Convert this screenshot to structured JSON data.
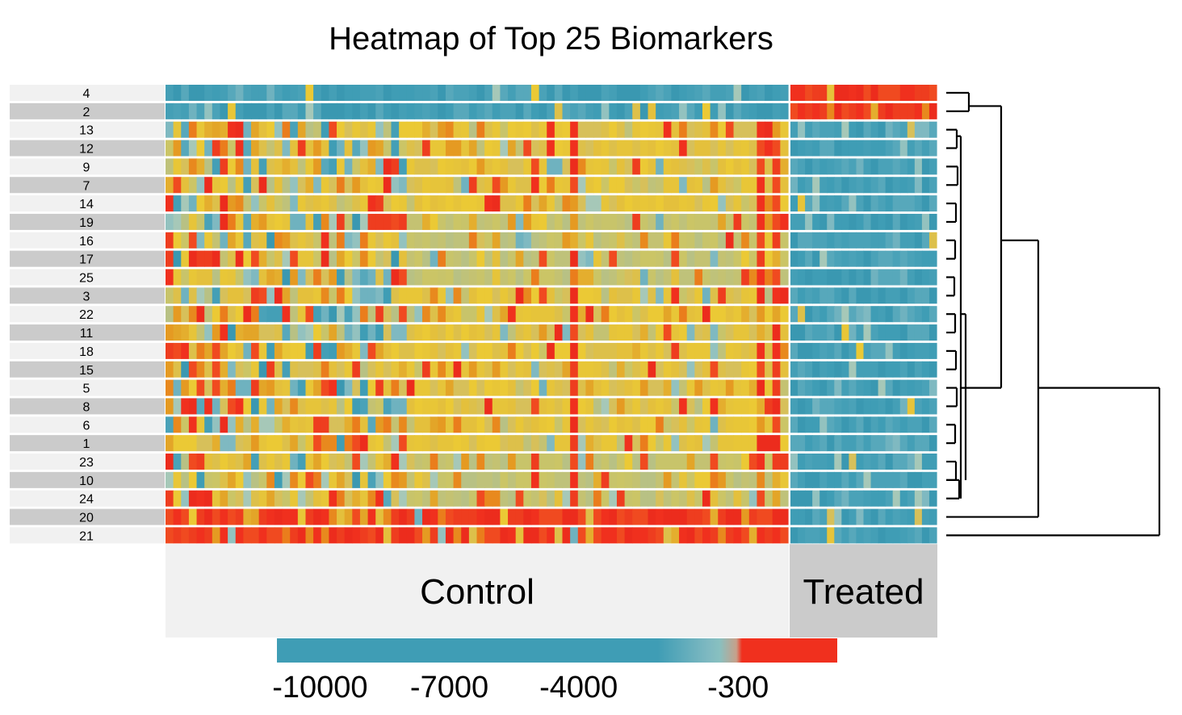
{
  "chart_data": {
    "type": "heatmap",
    "title": "Heatmap of Top 25 Biomarkers",
    "row_labels": [
      "4",
      "2",
      "13",
      "12",
      "9",
      "7",
      "14",
      "19",
      "16",
      "17",
      "25",
      "3",
      "22",
      "11",
      "18",
      "15",
      "5",
      "8",
      "6",
      "1",
      "23",
      "10",
      "24",
      "20",
      "21"
    ],
    "groups": [
      {
        "name": "Control",
        "n_columns": 80
      },
      {
        "name": "Treated",
        "n_columns": 20
      }
    ],
    "row_profiles": {
      "4": {
        "Control": -8000,
        "Treated": 300
      },
      "2": {
        "Control": -8000,
        "Treated": 250
      },
      "13": {
        "Control": -5,
        "Treated": -8500
      },
      "12": {
        "Control": -5,
        "Treated": -8500
      },
      "9": {
        "Control": -15,
        "Treated": -8500
      },
      "7": {
        "Control": -5,
        "Treated": -8500
      },
      "14": {
        "Control": -5,
        "Treated": -8500
      },
      "19": {
        "Control": -40,
        "Treated": -8500
      },
      "16": {
        "Control": -40,
        "Treated": -8500
      },
      "17": {
        "Control": -40,
        "Treated": -8500
      },
      "25": {
        "Control": -20,
        "Treated": -8500
      },
      "3": {
        "Control": -15,
        "Treated": -8500
      },
      "22": {
        "Control": -15,
        "Treated": -8500
      },
      "11": {
        "Control": -15,
        "Treated": -8500
      },
      "18": {
        "Control": -15,
        "Treated": -8500
      },
      "15": {
        "Control": -15,
        "Treated": -8500
      },
      "5": {
        "Control": -15,
        "Treated": -8500
      },
      "8": {
        "Control": -15,
        "Treated": -8500
      },
      "6": {
        "Control": -10,
        "Treated": -8500
      },
      "1": {
        "Control": -10,
        "Treated": -8500
      },
      "23": {
        "Control": -30,
        "Treated": -8500
      },
      "10": {
        "Control": -30,
        "Treated": -8500
      },
      "24": {
        "Control": -30,
        "Treated": -8500
      },
      "20": {
        "Control": 200,
        "Treated": -8500
      },
      "21": {
        "Control": 300,
        "Treated": -8500
      }
    },
    "color_scale": {
      "ticks": [
        -10000,
        -7000,
        -4000,
        -300
      ],
      "range": [
        -11000,
        2000
      ],
      "colors": {
        "low": "#3f9db5",
        "mid": "#88c0c0",
        "yellow": "#e8c637",
        "orange": "#e8891e",
        "high": "#f0301e"
      }
    },
    "dendrogram": true
  }
}
